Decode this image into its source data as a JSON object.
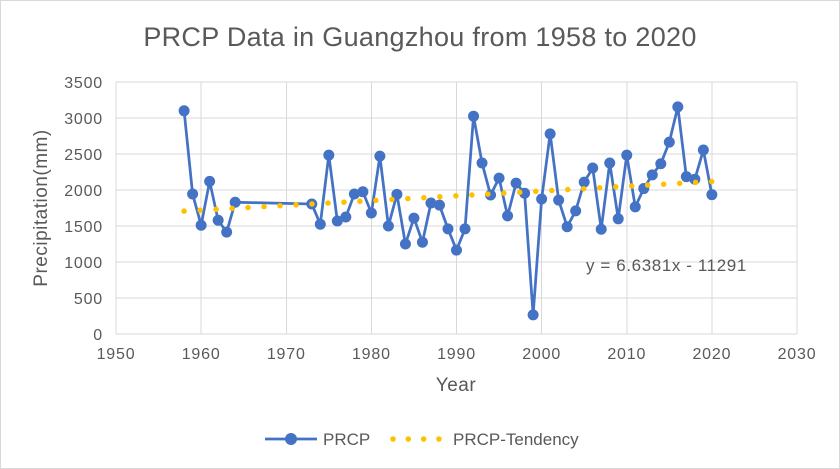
{
  "chart_data": {
    "type": "line",
    "title": "PRCP Data in Guangzhou from 1958 to 2020",
    "xlabel": "Year",
    "ylabel": "Precipitation(mm)",
    "xlim": [
      1950,
      2030
    ],
    "ylim": [
      0,
      3500
    ],
    "xticks": [
      1950,
      1960,
      1970,
      1980,
      1990,
      2000,
      2010,
      2020,
      2030
    ],
    "yticks": [
      0,
      500,
      1000,
      1500,
      2000,
      2500,
      3000,
      3500
    ],
    "grid": true,
    "legend": "bottom",
    "x": [
      1958,
      1959,
      1960,
      1961,
      1962,
      1963,
      1964,
      1973,
      1974,
      1975,
      1976,
      1977,
      1978,
      1979,
      1980,
      1981,
      1982,
      1983,
      1984,
      1985,
      1986,
      1987,
      1988,
      1989,
      1990,
      1991,
      1992,
      1993,
      1994,
      1995,
      1996,
      1997,
      1998,
      1999,
      2000,
      2001,
      2002,
      2003,
      2004,
      2005,
      2006,
      2007,
      2008,
      2009,
      2010,
      2011,
      2012,
      2013,
      2014,
      2015,
      2016,
      2017,
      2018,
      2019,
      2020
    ],
    "series": [
      {
        "name": "PRCP",
        "color": "#4472C4",
        "marker": "circle",
        "line_style": "solid",
        "values": [
          3100,
          1945,
          1510,
          2120,
          1580,
          1415,
          1830,
          1805,
          1525,
          2485,
          1570,
          1625,
          1945,
          1975,
          1680,
          2470,
          1500,
          1940,
          1250,
          1610,
          1275,
          1820,
          1790,
          1460,
          1165,
          1460,
          3025,
          2375,
          1930,
          2165,
          1640,
          2095,
          1955,
          265,
          1875,
          2780,
          1860,
          1490,
          1710,
          2110,
          2305,
          1455,
          2375,
          1600,
          2485,
          1765,
          2020,
          2210,
          2365,
          2665,
          3155,
          2185,
          2150,
          2555,
          1935
        ]
      },
      {
        "name": "PRCP-Tendency",
        "color": "#FFC000",
        "marker": "none",
        "line_style": "dotted",
        "values": [
          1706,
          1713,
          1720,
          1726,
          1733,
          1740,
          1746,
          1806,
          1813,
          1819,
          1826,
          1832,
          1839,
          1846,
          1852,
          1859,
          1866,
          1872,
          1879,
          1886,
          1892,
          1899,
          1906,
          1912,
          1919,
          1925,
          1932,
          1939,
          1945,
          1952,
          1959,
          1965,
          1972,
          1979,
          1985,
          1992,
          1998,
          2005,
          2012,
          2018,
          2025,
          2032,
          2038,
          2045,
          2052,
          2058,
          2065,
          2072,
          2078,
          2085,
          2091,
          2098,
          2105,
          2111,
          2118
        ]
      }
    ],
    "annotations": [
      {
        "text": "y = 6.6381x - 11291"
      }
    ]
  }
}
